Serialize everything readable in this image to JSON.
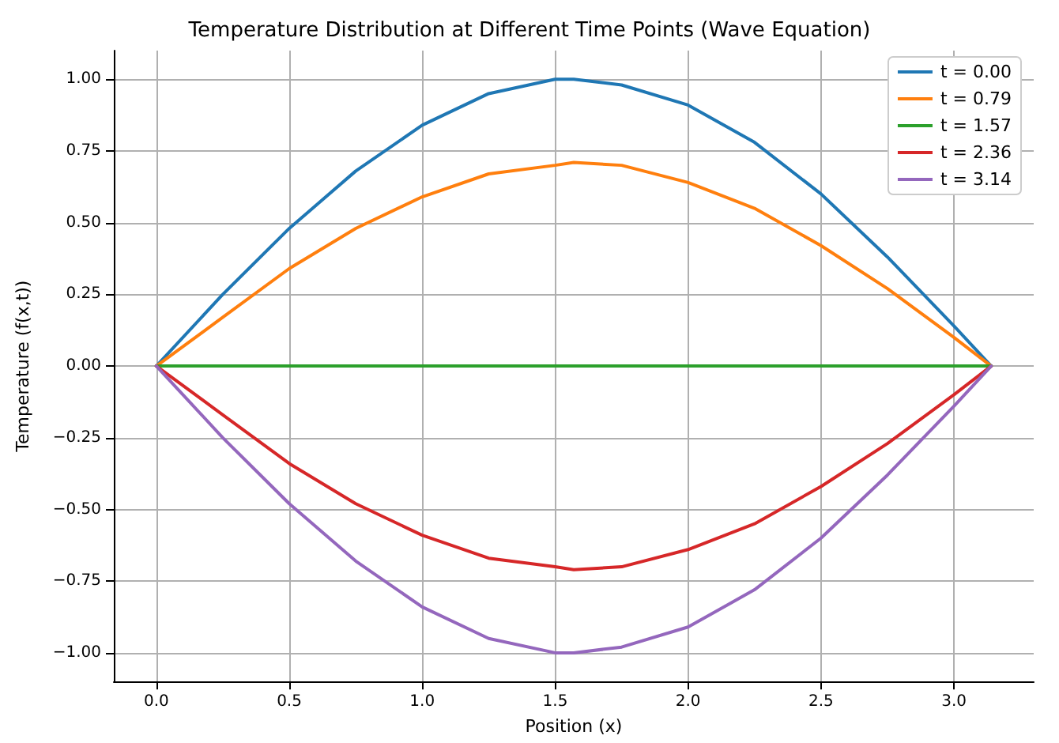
{
  "chart_data": {
    "type": "line",
    "title": "Temperature Distribution at Different Time Points (Wave Equation)",
    "xlabel": "Position (x)",
    "ylabel": "Temperature (f(x,t))",
    "x": [
      0,
      0.25,
      0.5,
      0.75,
      1,
      1.25,
      1.5,
      1.57,
      1.75,
      2,
      2.25,
      2.5,
      2.75,
      3,
      3.14
    ],
    "series": [
      {
        "name": "t = 0.00",
        "color": "#1f77b4",
        "values": [
          0,
          0.25,
          0.48,
          0.68,
          0.84,
          0.95,
          1.0,
          1.0,
          0.98,
          0.91,
          0.78,
          0.6,
          0.38,
          0.14,
          0
        ]
      },
      {
        "name": "t = 0.79",
        "color": "#ff7f0e",
        "values": [
          0,
          0.17,
          0.34,
          0.48,
          0.59,
          0.67,
          0.7,
          0.71,
          0.7,
          0.64,
          0.55,
          0.42,
          0.27,
          0.1,
          0
        ]
      },
      {
        "name": "t = 1.57",
        "color": "#2ca02c",
        "values": [
          0,
          0,
          0,
          0,
          0,
          0,
          0,
          0,
          0,
          0,
          0,
          0,
          0,
          0,
          0
        ]
      },
      {
        "name": "t = 2.36",
        "color": "#d62728",
        "values": [
          0,
          -0.17,
          -0.34,
          -0.48,
          -0.59,
          -0.67,
          -0.7,
          -0.71,
          -0.7,
          -0.64,
          -0.55,
          -0.42,
          -0.27,
          -0.1,
          0
        ]
      },
      {
        "name": "t = 3.14",
        "color": "#9467bd",
        "values": [
          0,
          -0.25,
          -0.48,
          -0.68,
          -0.84,
          -0.95,
          -1.0,
          -1.0,
          -0.98,
          -0.91,
          -0.78,
          -0.6,
          -0.38,
          -0.14,
          0
        ]
      }
    ],
    "xlim": [
      -0.16,
      3.3
    ],
    "xticks": [
      {
        "value": 0,
        "label": "0.0"
      },
      {
        "value": 0.5,
        "label": "0.5"
      },
      {
        "value": 1,
        "label": "1.0"
      },
      {
        "value": 1.5,
        "label": "1.5"
      },
      {
        "value": 2,
        "label": "2.0"
      },
      {
        "value": 2.5,
        "label": "2.5"
      },
      {
        "value": 3,
        "label": "3.0"
      }
    ],
    "ylim": [
      -1.1,
      1.1
    ],
    "yticks": [
      {
        "value": -1,
        "label": "−1.00"
      },
      {
        "value": -0.75,
        "label": "−0.75"
      },
      {
        "value": -0.5,
        "label": "−0.50"
      },
      {
        "value": -0.25,
        "label": "−0.25"
      },
      {
        "value": 0,
        "label": "0.00"
      },
      {
        "value": 0.25,
        "label": "0.25"
      },
      {
        "value": 0.5,
        "label": "0.50"
      },
      {
        "value": 0.75,
        "label": "0.75"
      },
      {
        "value": 1,
        "label": "1.00"
      }
    ],
    "grid": true,
    "legend": "top right",
    "marker": "none",
    "line_style": "solid"
  }
}
